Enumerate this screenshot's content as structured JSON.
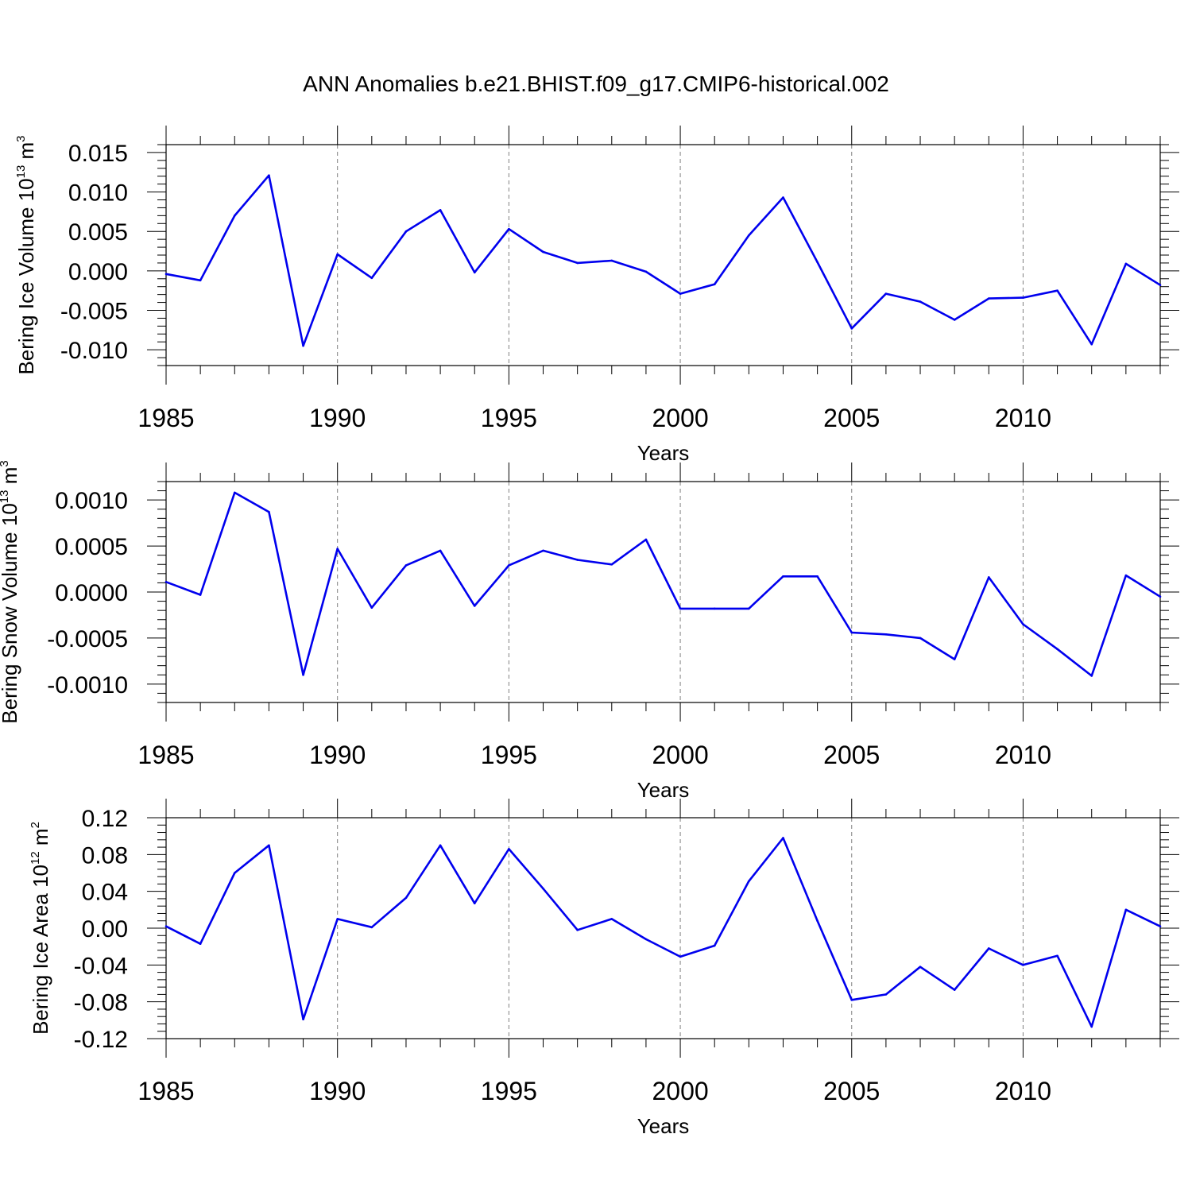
{
  "title": "ANN Anomalies b.e21.BHIST.f09_g17.CMIP6-historical.002",
  "chart_data": [
    {
      "type": "line",
      "title": "",
      "xlabel": "Years",
      "ylabel": "Bering Ice Volume 10",
      "ylabel_exponent": "13",
      "ylabel_unit": " m",
      "ylabel_unit_exponent": "3",
      "xlim": [
        1985,
        2014
      ],
      "ylim": [
        -0.012,
        0.016
      ],
      "x_ticks": [
        1985,
        1990,
        1995,
        2000,
        2005,
        2010
      ],
      "x_tick_labels": [
        "1985",
        "1990",
        "1995",
        "2000",
        "2005",
        "2010"
      ],
      "y_ticks": [
        -0.01,
        -0.005,
        0.0,
        0.005,
        0.01,
        0.015
      ],
      "y_tick_labels": [
        "-0.010",
        "-0.005",
        "0.000",
        "0.005",
        "0.010",
        "0.015"
      ],
      "grid": "vertical dashed at labeled x ticks",
      "line_color": "#0000ee",
      "series": [
        {
          "x": [
            1985,
            1986,
            1987,
            1988,
            1989,
            1990,
            1991,
            1992,
            1993,
            1994,
            1995,
            1996,
            1997,
            1998,
            1999,
            2000,
            2001,
            2002,
            2003,
            2004,
            2005,
            2006,
            2007,
            2008,
            2009,
            2010,
            2011,
            2012,
            2013,
            2014
          ],
          "values": [
            -0.0004,
            -0.0012,
            0.007,
            0.0121,
            -0.0095,
            0.0021,
            -0.0009,
            0.005,
            0.0077,
            -0.0002,
            0.0053,
            0.0024,
            0.001,
            0.0013,
            -0.0001,
            -0.0029,
            -0.0017,
            0.0045,
            0.0093,
            0.0011,
            -0.0073,
            -0.0029,
            -0.0039,
            -0.0062,
            -0.0035,
            -0.0034,
            -0.0025,
            -0.0093,
            0.0009,
            -0.0018
          ]
        }
      ]
    },
    {
      "type": "line",
      "title": "",
      "xlabel": "Years",
      "ylabel": "Bering Snow Volume 10",
      "ylabel_exponent": "13",
      "ylabel_unit": " m",
      "ylabel_unit_exponent": "3",
      "xlim": [
        1985,
        2014
      ],
      "ylim": [
        -0.0012,
        0.0012
      ],
      "x_ticks": [
        1985,
        1990,
        1995,
        2000,
        2005,
        2010
      ],
      "x_tick_labels": [
        "1985",
        "1990",
        "1995",
        "2000",
        "2005",
        "2010"
      ],
      "y_ticks": [
        -0.001,
        -0.0005,
        0.0,
        0.0005,
        0.001
      ],
      "y_tick_labels": [
        "-0.0010",
        "-0.0005",
        "0.0000",
        "0.0005",
        "0.0010"
      ],
      "grid": "vertical dashed at labeled x ticks",
      "line_color": "#0000ee",
      "series": [
        {
          "x": [
            1985,
            1986,
            1987,
            1988,
            1989,
            1990,
            1991,
            1992,
            1993,
            1994,
            1995,
            1996,
            1997,
            1998,
            1999,
            2000,
            2001,
            2002,
            2003,
            2004,
            2005,
            2006,
            2007,
            2008,
            2009,
            2010,
            2011,
            2012,
            2013,
            2014
          ],
          "values": [
            0.00011,
            -3e-05,
            0.00108,
            0.00087,
            -0.0009,
            0.00047,
            -0.00017,
            0.00029,
            0.00045,
            -0.00015,
            0.00029,
            0.00045,
            0.00035,
            0.0003,
            0.00057,
            -0.00018,
            -0.00018,
            -0.00018,
            0.00017,
            0.00017,
            -0.00044,
            -0.00046,
            -0.0005,
            -0.00073,
            0.00016,
            -0.00035,
            -0.00062,
            -0.00091,
            0.00018,
            -5e-05
          ]
        }
      ]
    },
    {
      "type": "line",
      "title": "",
      "xlabel": "Years",
      "ylabel": "Bering Ice Area 10",
      "ylabel_exponent": "12",
      "ylabel_unit": " m",
      "ylabel_unit_exponent": "2",
      "xlim": [
        1985,
        2014
      ],
      "ylim": [
        -0.12,
        0.12
      ],
      "x_ticks": [
        1985,
        1990,
        1995,
        2000,
        2005,
        2010
      ],
      "x_tick_labels": [
        "1985",
        "1990",
        "1995",
        "2000",
        "2005",
        "2010"
      ],
      "y_ticks": [
        -0.12,
        -0.08,
        -0.04,
        0.0,
        0.04,
        0.08,
        0.12
      ],
      "y_tick_labels": [
        "-0.12",
        "-0.08",
        "-0.04",
        "0.00",
        "0.04",
        "0.08",
        "0.12"
      ],
      "grid": "vertical dashed at labeled x ticks",
      "line_color": "#0000ee",
      "series": [
        {
          "x": [
            1985,
            1986,
            1987,
            1988,
            1989,
            1990,
            1991,
            1992,
            1993,
            1994,
            1995,
            1996,
            1997,
            1998,
            1999,
            2000,
            2001,
            2002,
            2003,
            2004,
            2005,
            2006,
            2007,
            2008,
            2009,
            2010,
            2011,
            2012,
            2013,
            2014
          ],
          "values": [
            0.002,
            -0.017,
            0.06,
            0.09,
            -0.099,
            0.01,
            0.001,
            0.033,
            0.09,
            0.027,
            0.086,
            0.043,
            -0.002,
            0.01,
            -0.012,
            -0.031,
            -0.019,
            0.051,
            0.098,
            0.008,
            -0.078,
            -0.072,
            -0.042,
            -0.067,
            -0.022,
            -0.04,
            -0.03,
            -0.107,
            0.02,
            0.002
          ]
        }
      ]
    }
  ]
}
